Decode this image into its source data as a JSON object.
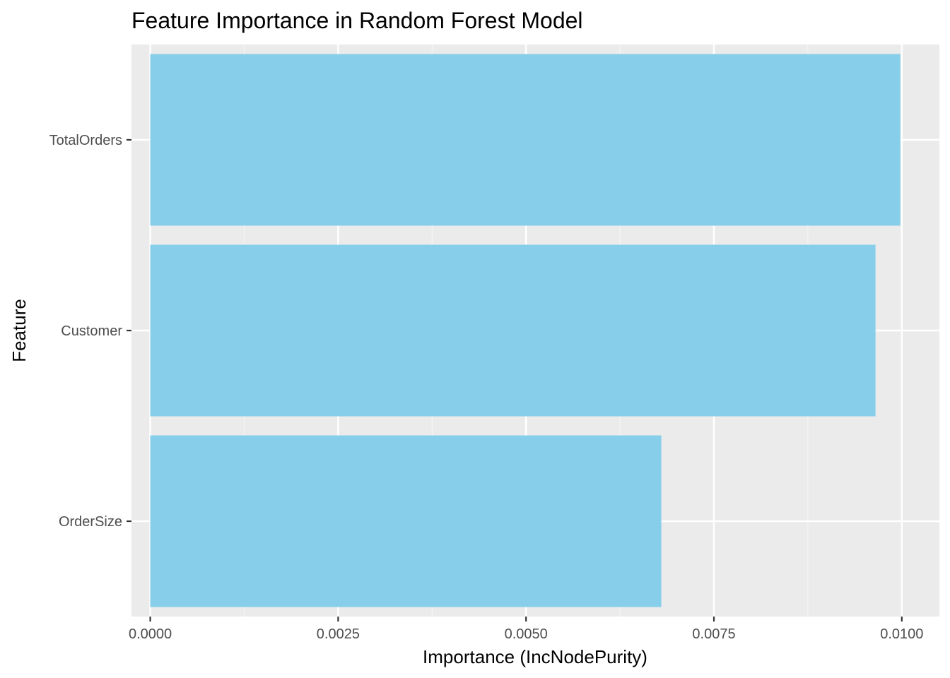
{
  "colors": {
    "panel_background": "#ebebeb",
    "grid_major": "#ffffff",
    "grid_minor": "#f5f5f5",
    "bar_fill": "#87ceeb",
    "tick_label": "#4d4d4d",
    "axis_tick": "#333333"
  },
  "chart_data": {
    "type": "bar",
    "orientation": "horizontal",
    "title": "Feature Importance in Random Forest Model",
    "xlabel": "Importance (IncNodePurity)",
    "ylabel": "Feature",
    "categories": [
      "TotalOrders",
      "Customer",
      "OrderSize"
    ],
    "values": [
      0.00998,
      0.00965,
      0.0068
    ],
    "xlim": [
      -0.00025,
      0.0105
    ],
    "x_ticks": [
      0,
      0.0025,
      0.005,
      0.0075,
      0.01
    ],
    "x_tick_labels": [
      "0.0000",
      "0.0025",
      "0.0050",
      "0.0075",
      "0.0100"
    ],
    "grid": true,
    "legend": "none"
  }
}
